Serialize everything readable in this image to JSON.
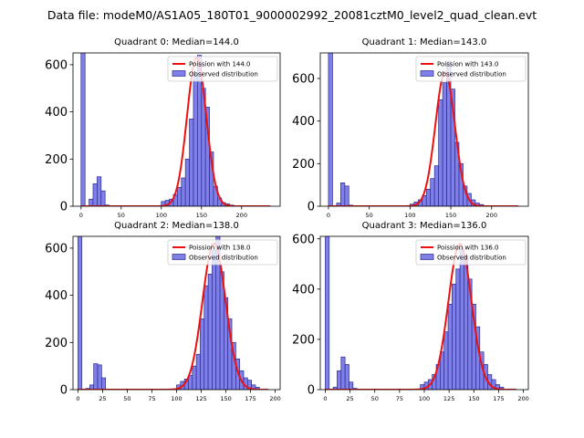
{
  "chart_data": {
    "title": "Data file: modeM0/AS1A05_180T01_9000002992_20081cztM0_level2_quad_clean.evt",
    "bar_fill": "#7f7fea",
    "bar_edge": "#2b2b8c",
    "curve_color": "#ee1111",
    "panels": [
      {
        "type": "bar+line",
        "title": "Quadrant 0: Median=144.0",
        "xlim": [
          -10,
          248
        ],
        "ylim": [
          0,
          650
        ],
        "xticks": [
          0,
          50,
          100,
          150,
          200
        ],
        "yticks": [
          0,
          200,
          400,
          600
        ],
        "bin_width": 5,
        "bins": [
          [
            0,
            1200
          ],
          [
            10,
            30
          ],
          [
            15,
            95
          ],
          [
            20,
            125
          ],
          [
            25,
            65
          ],
          [
            30,
            5
          ],
          [
            100,
            20
          ],
          [
            105,
            25
          ],
          [
            110,
            30
          ],
          [
            115,
            50
          ],
          [
            120,
            80
          ],
          [
            125,
            120
          ],
          [
            130,
            200
          ],
          [
            135,
            370
          ],
          [
            140,
            560
          ],
          [
            145,
            640
          ],
          [
            150,
            500
          ],
          [
            155,
            420
          ],
          [
            160,
            230
          ],
          [
            165,
            85
          ],
          [
            170,
            35
          ],
          [
            175,
            15
          ],
          [
            180,
            10
          ],
          [
            185,
            5
          ]
        ],
        "legend": {
          "curve_label": "Poission with 144.0",
          "hist_label": "Observed distribution"
        },
        "poisson": {
          "mean": 144,
          "peak": 630
        }
      },
      {
        "type": "bar+line",
        "title": "Quadrant 1: Median=143.0",
        "xlim": [
          -10,
          245
        ],
        "ylim": [
          0,
          720
        ],
        "xticks": [
          0,
          50,
          100,
          150,
          200
        ],
        "yticks": [
          0,
          200,
          400,
          600
        ],
        "bin_width": 5,
        "bins": [
          [
            0,
            1200
          ],
          [
            10,
            15
          ],
          [
            15,
            110
          ],
          [
            20,
            95
          ],
          [
            25,
            5
          ],
          [
            100,
            10
          ],
          [
            105,
            20
          ],
          [
            110,
            30
          ],
          [
            115,
            50
          ],
          [
            120,
            80
          ],
          [
            125,
            130
          ],
          [
            130,
            190
          ],
          [
            135,
            500
          ],
          [
            140,
            580
          ],
          [
            145,
            680
          ],
          [
            150,
            550
          ],
          [
            155,
            300
          ],
          [
            160,
            200
          ],
          [
            165,
            95
          ],
          [
            170,
            60
          ],
          [
            175,
            30
          ],
          [
            180,
            15
          ],
          [
            185,
            8
          ]
        ],
        "legend": {
          "curve_label": "Poission with 143.0",
          "hist_label": "Observed distribution"
        },
        "poisson": {
          "mean": 143,
          "peak": 630
        }
      },
      {
        "type": "bar+line",
        "title": "Quadrant 2: Median=138.0",
        "xlim": [
          -5,
          205
        ],
        "ylim": [
          0,
          650
        ],
        "xticks": [
          0,
          25,
          50,
          75,
          100,
          125,
          150,
          175,
          200
        ],
        "yticks": [
          0,
          200,
          400,
          600
        ],
        "bin_width": 4,
        "bins": [
          [
            0,
            1200
          ],
          [
            8,
            5
          ],
          [
            12,
            20
          ],
          [
            16,
            110
          ],
          [
            20,
            105
          ],
          [
            24,
            50
          ],
          [
            100,
            20
          ],
          [
            104,
            35
          ],
          [
            108,
            45
          ],
          [
            112,
            60
          ],
          [
            116,
            100
          ],
          [
            120,
            150
          ],
          [
            124,
            300
          ],
          [
            128,
            440
          ],
          [
            132,
            490
          ],
          [
            136,
            590
          ],
          [
            140,
            650
          ],
          [
            144,
            500
          ],
          [
            148,
            390
          ],
          [
            152,
            300
          ],
          [
            156,
            200
          ],
          [
            160,
            130
          ],
          [
            164,
            80
          ],
          [
            168,
            50
          ],
          [
            172,
            40
          ],
          [
            176,
            20
          ],
          [
            180,
            10
          ]
        ],
        "legend": {
          "curve_label": "Poission with 138.0",
          "hist_label": "Observed distribution"
        },
        "poisson": {
          "mean": 138,
          "peak": 620
        }
      },
      {
        "type": "bar+line",
        "title": "Quadrant 3: Median=136.0",
        "xlim": [
          -5,
          205
        ],
        "ylim": [
          0,
          610
        ],
        "xticks": [
          0,
          25,
          50,
          75,
          100,
          125,
          150,
          175,
          200
        ],
        "yticks": [
          0,
          200,
          400,
          600
        ],
        "bin_width": 4,
        "bins": [
          [
            0,
            1200
          ],
          [
            8,
            10
          ],
          [
            12,
            75
          ],
          [
            16,
            130
          ],
          [
            20,
            100
          ],
          [
            24,
            30
          ],
          [
            28,
            5
          ],
          [
            96,
            20
          ],
          [
            100,
            30
          ],
          [
            104,
            40
          ],
          [
            108,
            60
          ],
          [
            112,
            100
          ],
          [
            116,
            150
          ],
          [
            120,
            230
          ],
          [
            124,
            340
          ],
          [
            128,
            420
          ],
          [
            132,
            480
          ],
          [
            136,
            560
          ],
          [
            140,
            530
          ],
          [
            144,
            440
          ],
          [
            148,
            340
          ],
          [
            152,
            250
          ],
          [
            156,
            150
          ],
          [
            160,
            100
          ],
          [
            164,
            60
          ],
          [
            168,
            40
          ],
          [
            172,
            20
          ],
          [
            176,
            10
          ]
        ],
        "legend": {
          "curve_label": "Poission with 136.0",
          "hist_label": "Observed distribution"
        },
        "poisson": {
          "mean": 136,
          "peak": 580
        }
      }
    ]
  }
}
